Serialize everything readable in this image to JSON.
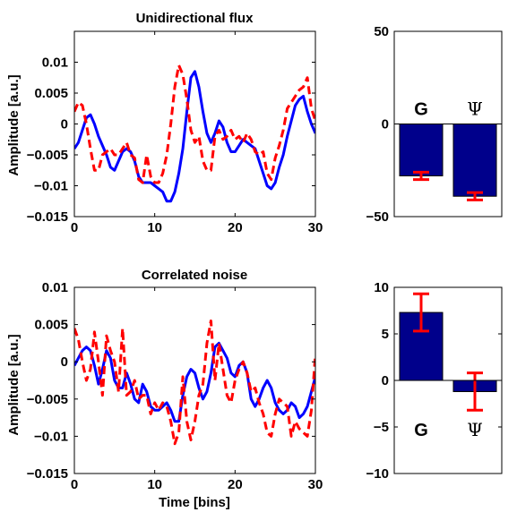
{
  "colors": {
    "series1": "#0000ff",
    "series2": "#ff0000",
    "bar": "#00008b",
    "errorbar": "#ff0000"
  },
  "chart_data": [
    {
      "id": "top-line",
      "type": "line",
      "title": "Unidirectional flux",
      "xlabel": "",
      "ylabel": "Amplitude [a.u.]",
      "xlim": [
        0,
        30
      ],
      "ylim": [
        -0.015,
        0.015
      ],
      "xticks": [
        0,
        10,
        20,
        30
      ],
      "xtick_labels": [
        "0",
        "10",
        "20",
        "30"
      ],
      "yticks": [
        -0.015,
        -0.01,
        -0.005,
        0,
        0.005,
        0.01
      ],
      "ytick_labels": [
        "−0.015",
        "−0.01",
        "−0.005",
        "0",
        "0.005",
        "0.01"
      ],
      "series": [
        {
          "style": "solid",
          "color": "#0000ff",
          "x": [
            0,
            0.5,
            1,
            1.5,
            2,
            2.5,
            3,
            3.5,
            4,
            4.5,
            5,
            5.5,
            6,
            6.5,
            7,
            7.5,
            8,
            8.5,
            9,
            9.5,
            10,
            10.5,
            11,
            11.5,
            12,
            12.5,
            13,
            13.5,
            14,
            14.5,
            15,
            15.5,
            16,
            16.5,
            17,
            17.5,
            18,
            18.5,
            19,
            19.5,
            20,
            20.5,
            21,
            21.5,
            22,
            22.5,
            23,
            23.5,
            24,
            24.5,
            25,
            25.5,
            26,
            26.5,
            27,
            27.5,
            28,
            28.5,
            29,
            29.5,
            30
          ],
          "y": [
            -0.004,
            -0.003,
            -0.001,
            0.001,
            0.0015,
            0.0,
            -0.002,
            -0.0035,
            -0.005,
            -0.007,
            -0.0075,
            -0.006,
            -0.0045,
            -0.004,
            -0.0045,
            -0.006,
            -0.0085,
            -0.0095,
            -0.0095,
            -0.0095,
            -0.01,
            -0.0105,
            -0.011,
            -0.0125,
            -0.0125,
            -0.011,
            -0.008,
            -0.004,
            0.002,
            0.0075,
            0.0085,
            0.006,
            0.002,
            -0.0015,
            -0.003,
            -0.0015,
            0.0005,
            -0.0005,
            -0.003,
            -0.0045,
            -0.0045,
            -0.0035,
            -0.0025,
            -0.003,
            -0.0035,
            -0.004,
            -0.006,
            -0.008,
            -0.01,
            -0.0105,
            -0.0095,
            -0.007,
            -0.005,
            -0.002,
            0.0005,
            0.003,
            0.004,
            0.0045,
            0.002,
            0.0,
            -0.0015
          ]
        },
        {
          "style": "dashed",
          "color": "#ff0000",
          "x": [
            0,
            0.5,
            1,
            1.5,
            2,
            2.5,
            3,
            3.5,
            4,
            4.5,
            5,
            5.5,
            6,
            6.5,
            7,
            7.5,
            8,
            8.5,
            9,
            9.5,
            10,
            10.5,
            11,
            11.5,
            12,
            12.5,
            13,
            13.5,
            14,
            14.5,
            15,
            15.5,
            16,
            16.5,
            17,
            17.5,
            18,
            18.5,
            19,
            19.5,
            20,
            20.5,
            21,
            21.5,
            22,
            22.5,
            23,
            23.5,
            24,
            24.5,
            25,
            25.5,
            26,
            26.5,
            27,
            27.5,
            28,
            28.5,
            29,
            29.5,
            30
          ],
          "y": [
            0.002,
            0.0035,
            0.003,
            0.0,
            -0.004,
            -0.0075,
            -0.0075,
            -0.005,
            -0.0045,
            -0.004,
            -0.005,
            -0.005,
            -0.004,
            -0.003,
            -0.005,
            -0.0055,
            -0.009,
            -0.0095,
            -0.005,
            -0.0085,
            -0.0095,
            -0.0095,
            -0.008,
            -0.005,
            0.0,
            0.006,
            0.0095,
            0.008,
            0.004,
            -0.001,
            -0.003,
            -0.002,
            -0.006,
            -0.0075,
            -0.0075,
            -0.002,
            -0.001,
            -0.0025,
            -0.002,
            -0.001,
            -0.0025,
            -0.002,
            -0.003,
            -0.0015,
            -0.0025,
            -0.0045,
            -0.005,
            -0.0045,
            -0.008,
            -0.009,
            -0.0055,
            -0.0035,
            -0.001,
            0.0025,
            0.0035,
            0.0045,
            0.0055,
            0.006,
            0.0075,
            0.0025,
            0.0005
          ]
        }
      ]
    },
    {
      "id": "top-bar",
      "type": "bar",
      "title": "",
      "xlabel": "",
      "ylabel": "",
      "categories": [
        "G",
        "Ψ"
      ],
      "values": [
        -28,
        -39
      ],
      "errors": [
        2,
        2
      ],
      "ylim": [
        -50,
        50
      ],
      "yticks": [
        -50,
        0,
        50
      ],
      "ytick_labels": [
        "−50",
        "0",
        "50"
      ],
      "category_label_position": "above"
    },
    {
      "id": "bottom-line",
      "type": "line",
      "title": "Correlated noise",
      "xlabel": "Time [bins]",
      "ylabel": "Amplitude [a.u.]",
      "xlim": [
        0,
        30
      ],
      "ylim": [
        -0.015,
        0.01
      ],
      "xticks": [
        0,
        10,
        20,
        30
      ],
      "xtick_labels": [
        "0",
        "10",
        "20",
        "30"
      ],
      "yticks": [
        -0.015,
        -0.01,
        -0.005,
        0,
        0.005,
        0.01
      ],
      "ytick_labels": [
        "−0.015",
        "−0.01",
        "−0.005",
        "0",
        "0.005",
        "0.01"
      ],
      "series": [
        {
          "style": "solid",
          "color": "#0000ff",
          "x": [
            0,
            0.5,
            1,
            1.5,
            2,
            2.5,
            3,
            3.5,
            4,
            4.5,
            5,
            5.5,
            6,
            6.5,
            7,
            7.5,
            8,
            8.5,
            9,
            9.5,
            10,
            10.5,
            11,
            11.5,
            12,
            12.5,
            13,
            13.5,
            14,
            14.5,
            15,
            15.5,
            16,
            16.5,
            17,
            17.5,
            18,
            18.5,
            19,
            19.5,
            20,
            20.5,
            21,
            21.5,
            22,
            22.5,
            23,
            23.5,
            24,
            24.5,
            25,
            25.5,
            26,
            26.5,
            27,
            27.5,
            28,
            28.5,
            29,
            29.5,
            30
          ],
          "y": [
            -0.0005,
            0.0005,
            0.0015,
            0.002,
            0.0015,
            -0.0005,
            -0.003,
            -0.001,
            0.0015,
            0.0005,
            -0.0025,
            -0.0035,
            -0.0035,
            -0.0015,
            -0.003,
            -0.005,
            -0.0055,
            -0.003,
            -0.004,
            -0.006,
            -0.0065,
            -0.0065,
            -0.006,
            -0.0055,
            -0.0065,
            -0.008,
            -0.008,
            -0.0045,
            -0.002,
            -0.001,
            -0.0015,
            -0.0035,
            -0.005,
            -0.004,
            -0.0015,
            0.002,
            0.0025,
            0.0015,
            0.0005,
            -0.0015,
            -0.002,
            -0.0005,
            0.0,
            -0.0015,
            -0.005,
            -0.006,
            -0.005,
            -0.0035,
            -0.0025,
            -0.0035,
            -0.0055,
            -0.0065,
            -0.007,
            -0.0065,
            -0.0055,
            -0.006,
            -0.0075,
            -0.007,
            -0.006,
            -0.004,
            -0.002
          ]
        },
        {
          "style": "dashed",
          "color": "#ff0000",
          "x": [
            0,
            0.5,
            1,
            1.5,
            2,
            2.5,
            3,
            3.5,
            4,
            4.5,
            5,
            5.5,
            6,
            6.5,
            7,
            7.5,
            8,
            8.5,
            9,
            9.5,
            10,
            10.5,
            11,
            11.5,
            12,
            12.5,
            13,
            13.5,
            14,
            14.5,
            15,
            15.5,
            16,
            16.5,
            17,
            17.5,
            18,
            18.5,
            19,
            19.5,
            20,
            20.5,
            21,
            21.5,
            22,
            22.5,
            23,
            23.5,
            24,
            24.5,
            25,
            25.5,
            26,
            26.5,
            27,
            27.5,
            28,
            28.5,
            29,
            29.5,
            30
          ],
          "y": [
            0.0045,
            0.003,
            0.0,
            -0.0025,
            -0.001,
            0.004,
            0.0,
            -0.0045,
            0.0035,
            0.0015,
            0.0,
            -0.004,
            0.0045,
            -0.0045,
            -0.004,
            -0.0025,
            -0.005,
            -0.0045,
            -0.0045,
            -0.007,
            -0.0055,
            -0.0065,
            -0.0055,
            -0.006,
            -0.008,
            -0.011,
            -0.0095,
            -0.002,
            -0.008,
            -0.0105,
            -0.008,
            -0.0045,
            -0.003,
            0.0025,
            0.0055,
            -0.0025,
            0.0025,
            -0.001,
            -0.0045,
            -0.0055,
            -0.0025,
            -0.001,
            0.0,
            -0.0015,
            -0.004,
            -0.0035,
            -0.0055,
            -0.007,
            -0.0095,
            -0.01,
            -0.007,
            -0.005,
            -0.0055,
            -0.006,
            -0.01,
            -0.008,
            -0.009,
            -0.0095,
            -0.01,
            -0.0065,
            0.001
          ]
        }
      ]
    },
    {
      "id": "bottom-bar",
      "type": "bar",
      "title": "",
      "xlabel": "",
      "ylabel": "",
      "categories": [
        "G",
        "Ψ"
      ],
      "values": [
        7.3,
        -1.2
      ],
      "errors": [
        2,
        2
      ],
      "ylim": [
        -10,
        10
      ],
      "yticks": [
        -10,
        -5,
        0,
        5,
        10
      ],
      "ytick_labels": [
        "−10",
        "−5",
        "0",
        "5",
        "10"
      ],
      "category_label_position": "below"
    }
  ]
}
